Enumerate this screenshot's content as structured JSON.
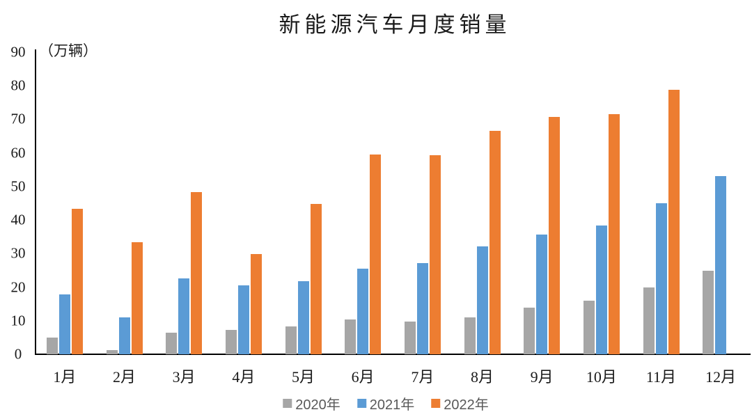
{
  "chart_data": {
    "type": "bar",
    "title": "新能源汽车月度销量",
    "unit_label": "（万辆）",
    "xlabel": "",
    "ylabel": "万辆",
    "ylim": [
      0,
      90
    ],
    "ytick_step": 10,
    "grid": false,
    "legend_position": "bottom",
    "categories": [
      "1月",
      "2月",
      "3月",
      "4月",
      "5月",
      "6月",
      "7月",
      "8月",
      "9月",
      "10月",
      "11月",
      "12月"
    ],
    "series": [
      {
        "name": "2020年",
        "color": "#A6A6A6",
        "values": [
          5.0,
          1.3,
          6.4,
          7.2,
          8.2,
          10.4,
          9.8,
          10.9,
          13.8,
          16.0,
          20.0,
          24.8
        ]
      },
      {
        "name": "2021年",
        "color": "#5B9BD5",
        "values": [
          17.9,
          11.0,
          22.6,
          20.6,
          21.7,
          25.6,
          27.1,
          32.1,
          35.7,
          38.3,
          45.0,
          53.1
        ]
      },
      {
        "name": "2022年",
        "color": "#ED7D31",
        "values": [
          43.3,
          33.4,
          48.4,
          29.9,
          44.7,
          59.6,
          59.3,
          66.6,
          70.8,
          71.6,
          78.8,
          null
        ]
      }
    ]
  }
}
